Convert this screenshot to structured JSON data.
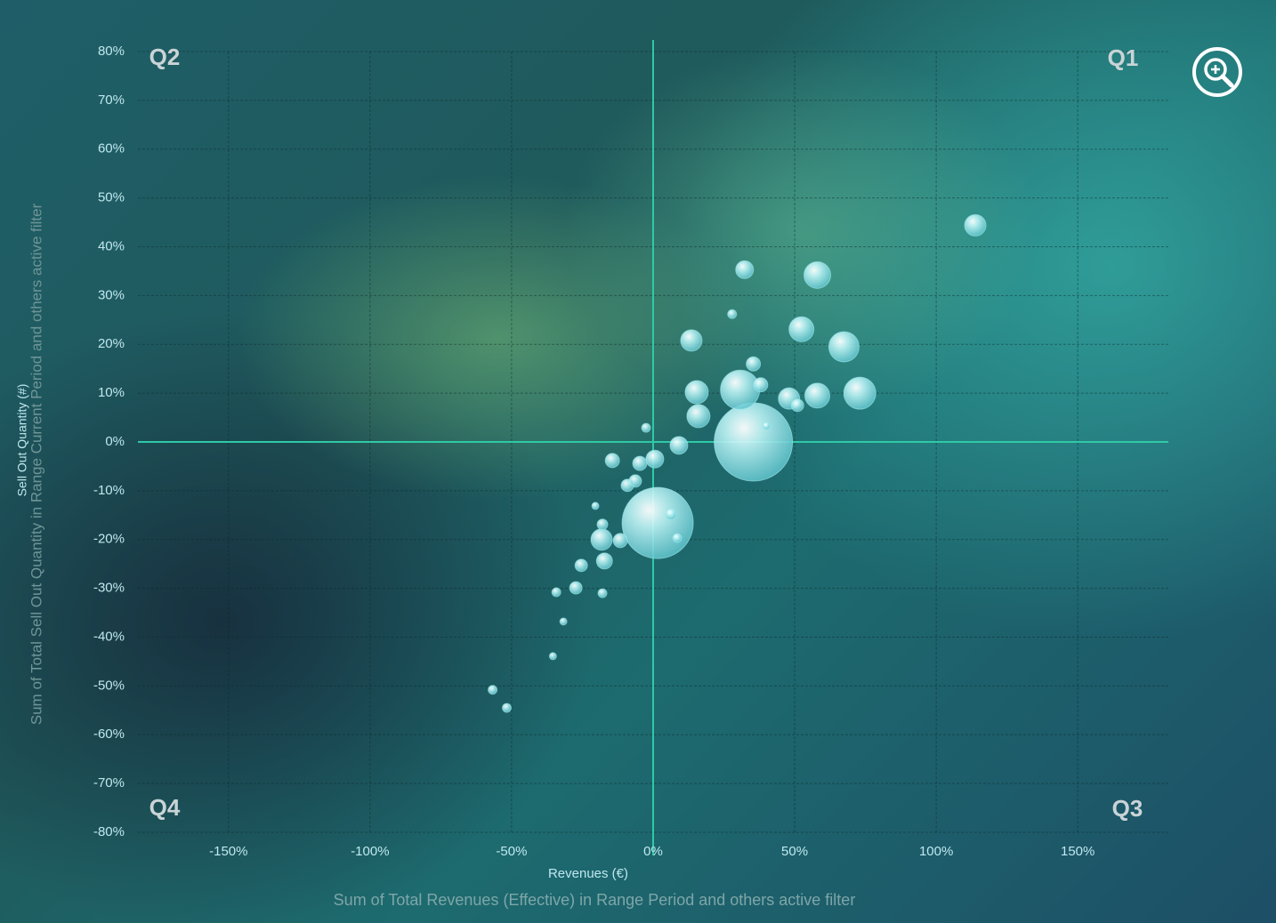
{
  "chart_data": {
    "type": "scatter",
    "x_label": "Revenues (€)",
    "x_sublabel": "Sum of Total Revenues (Effective) in Range Period and others active filter",
    "y_label": "Sell Out Quantity (#)",
    "y_sublabel": "Sum of Total Sell Out Quantity in Range Current Period and others active filter",
    "annotations": [
      "Q1",
      "Q2",
      "Q3",
      "Q4"
    ],
    "color": "#9fe9ee",
    "zero_line_color": "#2fc9a6",
    "grid": true,
    "xlim": [
      -182,
      182
    ],
    "ylim": [
      -80,
      80
    ],
    "xticks": [
      {
        "value": -150,
        "label": "-150%"
      },
      {
        "value": -100,
        "label": "-100%"
      },
      {
        "value": -50,
        "label": "-50%"
      },
      {
        "value": 0,
        "label": "0%"
      },
      {
        "value": 50,
        "label": "50%"
      },
      {
        "value": 100,
        "label": "100%"
      },
      {
        "value": 150,
        "label": "150%"
      }
    ],
    "yticks": [
      {
        "value": 80,
        "label": "80%"
      },
      {
        "value": 70,
        "label": "70%"
      },
      {
        "value": 60,
        "label": "60%"
      },
      {
        "value": 50,
        "label": "50%"
      },
      {
        "value": 40,
        "label": "40%"
      },
      {
        "value": 30,
        "label": "30%"
      },
      {
        "value": 20,
        "label": "20%"
      },
      {
        "value": 10,
        "label": "10%"
      },
      {
        "value": 0,
        "label": "0%"
      },
      {
        "value": -10,
        "label": "-10%"
      },
      {
        "value": -20,
        "label": "-20%"
      },
      {
        "value": -30,
        "label": "-30%"
      },
      {
        "value": -40,
        "label": "-40%"
      },
      {
        "value": -50,
        "label": "-50%"
      },
      {
        "value": -60,
        "label": "-60%"
      },
      {
        "value": -70,
        "label": "-70%"
      },
      {
        "value": -80,
        "label": "-80%"
      }
    ],
    "x": [
      35.4,
      1.6,
      30.7,
      113.8,
      58,
      32.3,
      52.4,
      67.4,
      73,
      58,
      48,
      13.5,
      15.4,
      16,
      9.1,
      0.6,
      -14.4,
      -4.7,
      -6.3,
      -9.1,
      -18.2,
      -17.2,
      -11.6,
      -25.4,
      -27.3,
      -34.2,
      -17.9,
      -17.9,
      -31.7,
      -35.4,
      -56.7,
      -51.7,
      -2.5,
      35.4,
      27.9,
      38,
      51,
      -20.4,
      6.3,
      8.5,
      40
    ],
    "y": [
      0,
      -16.6,
      10.7,
      44.4,
      34.2,
      35.3,
      23.1,
      19.5,
      10,
      9.5,
      8.9,
      20.8,
      10.2,
      5.3,
      -0.7,
      -3.5,
      -3.8,
      -4.4,
      -8,
      -8.9,
      -20,
      -24.4,
      -20.2,
      -25.3,
      -29.9,
      -30.8,
      -31,
      -16.9,
      -36.8,
      -43.9,
      -50.8,
      -54.5,
      2.9,
      16,
      26.2,
      11.7,
      7.5,
      -13.1,
      -14.8,
      -19.7,
      3.3
    ],
    "sizes": [
      44,
      40,
      22,
      12,
      15,
      10,
      14,
      17,
      18,
      14,
      12,
      12,
      13,
      13,
      10,
      10,
      8,
      8,
      7,
      7,
      12,
      9,
      8,
      7,
      7,
      5,
      5,
      6,
      4,
      4,
      5,
      5,
      5,
      8,
      5,
      8,
      7,
      4,
      6,
      5,
      4
    ]
  }
}
